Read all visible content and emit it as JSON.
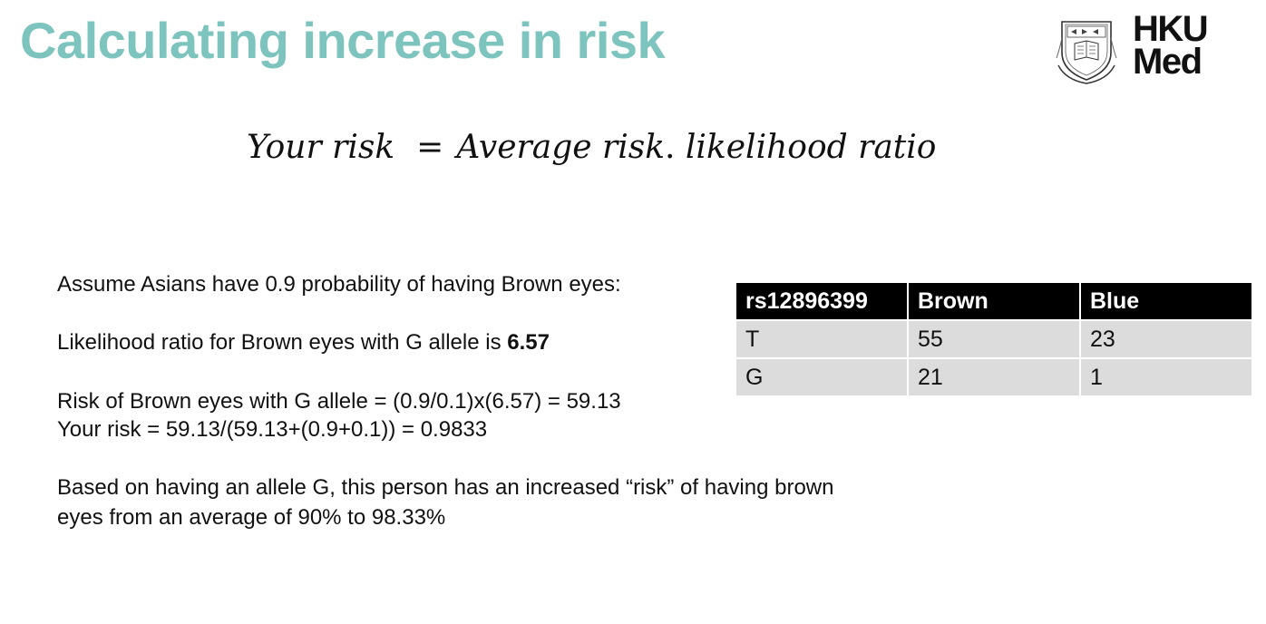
{
  "slide": {
    "title": "Calculating increase in risk"
  },
  "logo": {
    "line1": "HKU",
    "line2": "Med"
  },
  "formula": {
    "left": "Your risk",
    "equals": "=",
    "right_a": "Average risk",
    "dot": ".",
    "right_b": " likelihood ratio"
  },
  "text": {
    "line1": "Assume Asians have 0.9 probability of having Brown eyes:",
    "line2_prefix": "Likelihood ratio for Brown eyes with G allele is ",
    "line2_value": "6.57",
    "line3": "Risk of Brown eyes with G allele = (0.9/0.1)x(6.57) = 59.13",
    "line4": "Your risk = 59.13/(59.13+(0.9+0.1)) = 0.9833",
    "line5": "Based on having an allele G, this person has an increased “risk” of having brown",
    "line6": "eyes from an average of 90% to 98.33%"
  },
  "table": {
    "headers": [
      "rs12896399",
      "Brown",
      "Blue"
    ],
    "rows": [
      [
        "T",
        "55",
        "23"
      ],
      [
        "G",
        "21",
        "1"
      ]
    ]
  },
  "colors": {
    "title": "#7cc4bd",
    "header_bg": "#000000",
    "cell_bg": "#dcdcdc"
  }
}
